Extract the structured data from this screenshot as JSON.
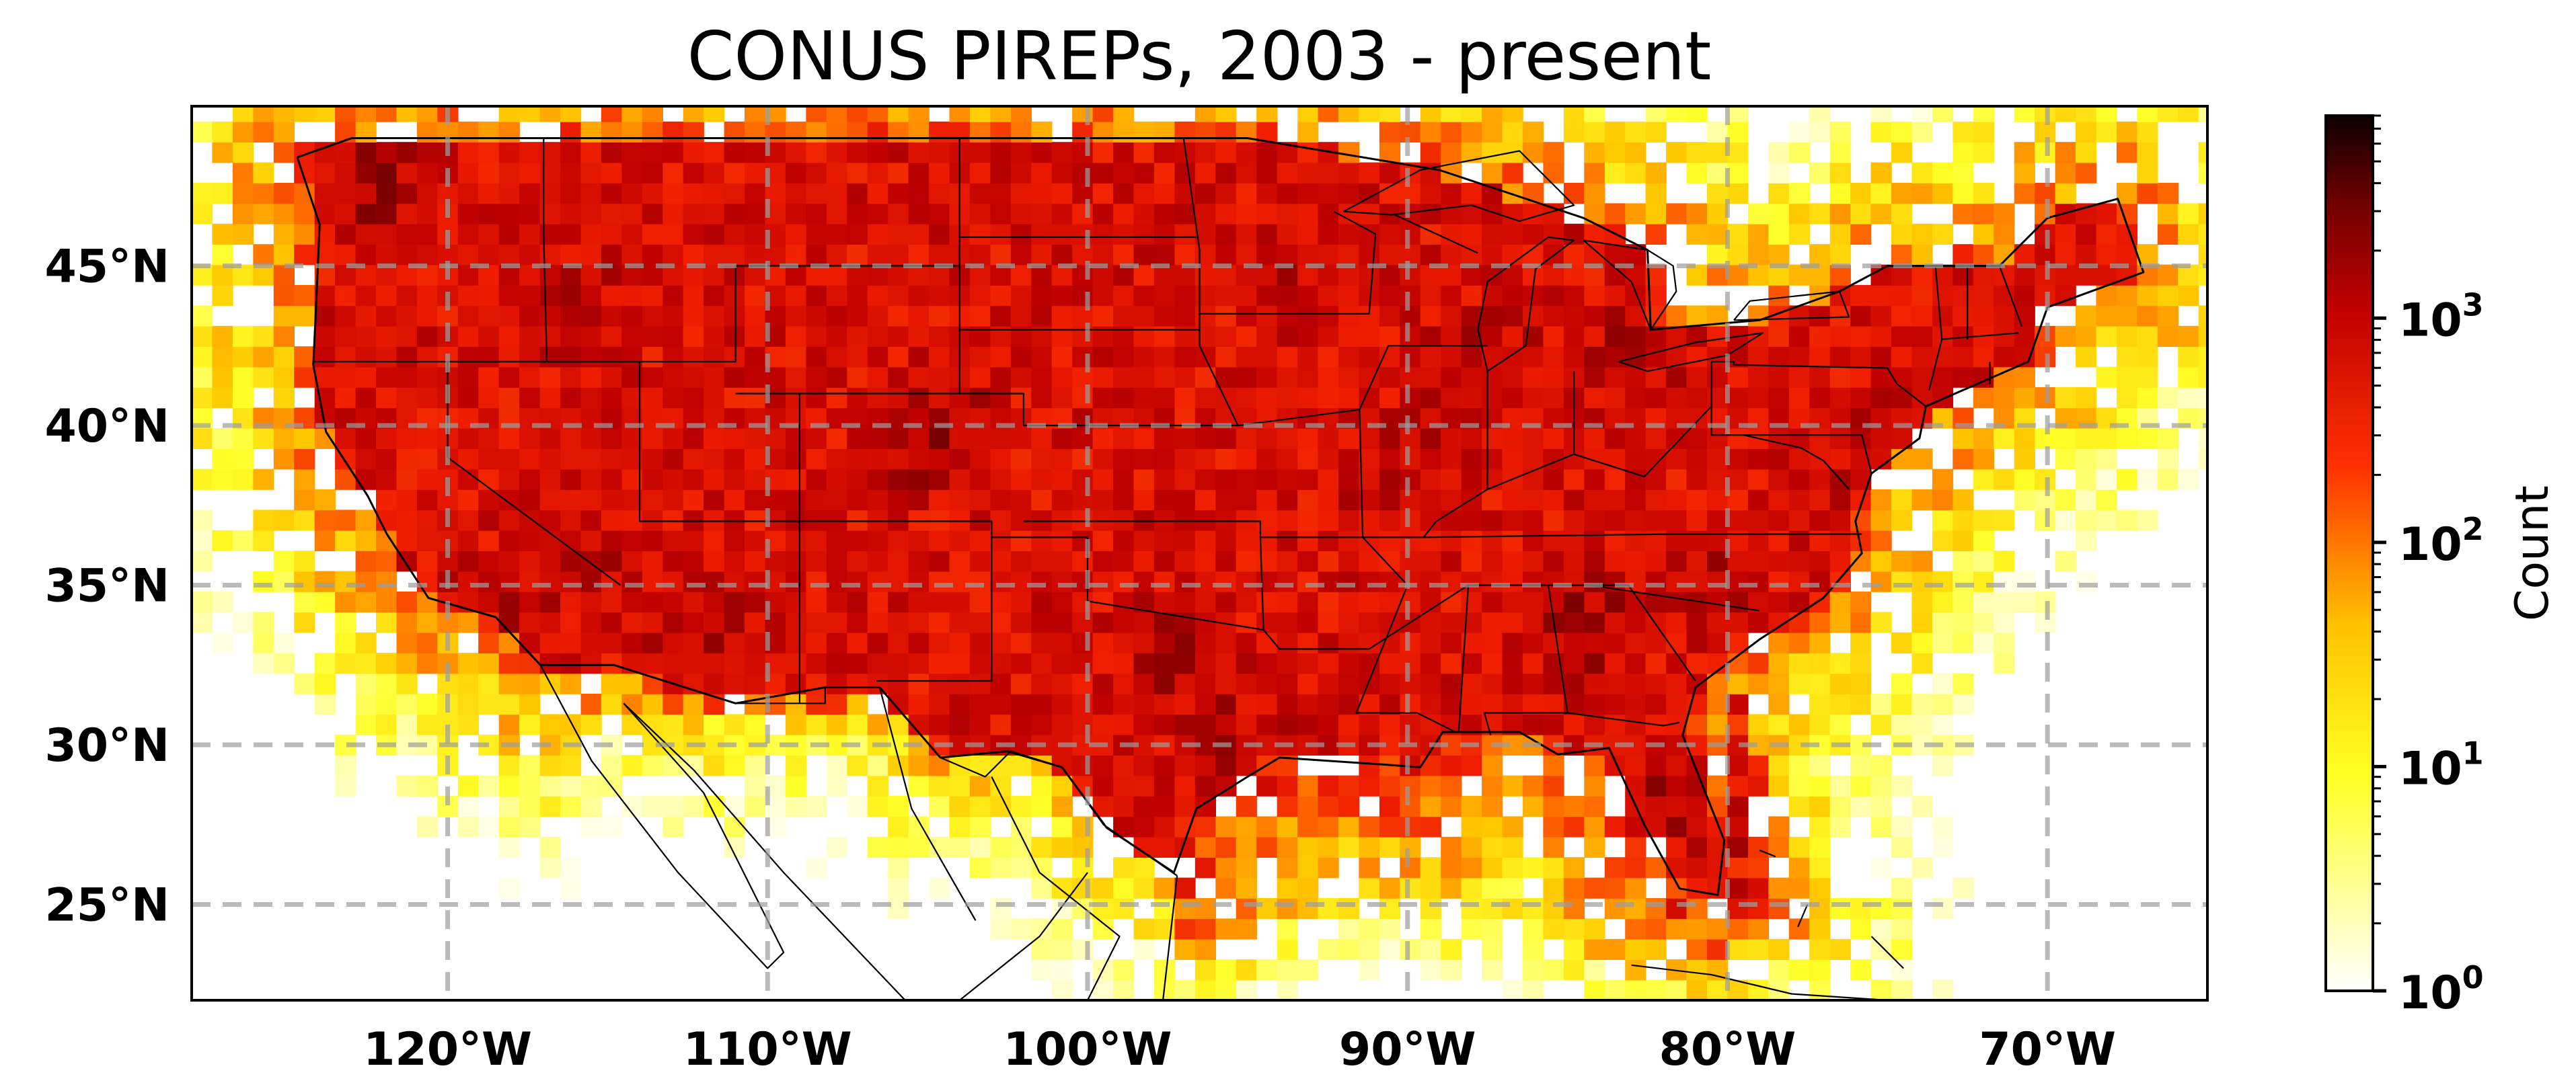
{
  "title": "CONUS PIREPs, 2003 - present",
  "map": {
    "projection": "PlateCarree",
    "extent": {
      "lon_min": -128,
      "lon_max": -65,
      "lat_min": 22,
      "lat_max": 50
    },
    "gridlines": {
      "style": "dashed",
      "color": "#9e9e9e"
    },
    "x_ticks": [
      {
        "lon": -120,
        "label": "120°W"
      },
      {
        "lon": -110,
        "label": "110°W"
      },
      {
        "lon": -100,
        "label": "100°W"
      },
      {
        "lon": -90,
        "label": "90°W"
      },
      {
        "lon": -80,
        "label": "80°W"
      },
      {
        "lon": -70,
        "label": "70°W"
      }
    ],
    "y_ticks": [
      {
        "lat": 45,
        "label": "45°N"
      },
      {
        "lat": 40,
        "label": "40°N"
      },
      {
        "lat": 35,
        "label": "35°N"
      },
      {
        "lat": 30,
        "label": "30°N"
      },
      {
        "lat": 25,
        "label": "25°N"
      }
    ]
  },
  "colorbar": {
    "label": "Count",
    "cmap": "hot_r",
    "scale": "log",
    "range": [
      1,
      8000
    ],
    "ticks": [
      {
        "value": 1,
        "base": "10",
        "exp": "0"
      },
      {
        "value": 10,
        "base": "10",
        "exp": "1"
      },
      {
        "value": 100,
        "base": "10",
        "exp": "2"
      },
      {
        "value": 1000,
        "base": "10",
        "exp": "3"
      }
    ]
  }
}
